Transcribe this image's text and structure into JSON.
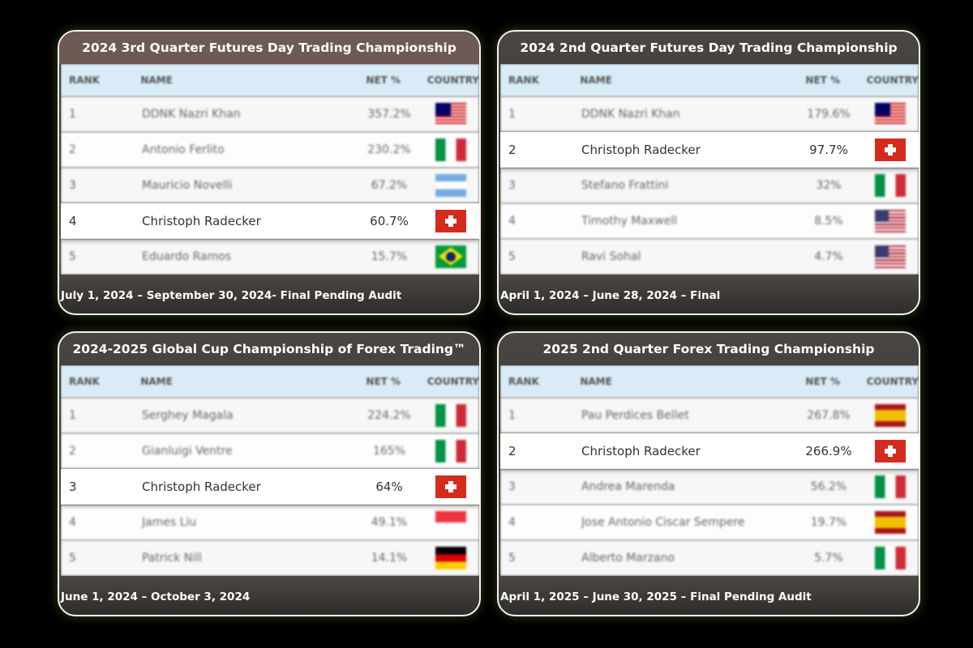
{
  "panels": [
    {
      "title": "2024 3rd Quarter Futures Day Trading Championship",
      "headers": [
        "RANK",
        "NAME",
        "NET %",
        "COUNTRY"
      ],
      "rows": [
        [
          "1",
          "DDNK Nazri Khan",
          "357.2%"
        ],
        [
          "2",
          "Antonio Ferlito",
          "230.2%"
        ],
        [
          "3",
          "Mauricio Novelli",
          "67.2%"
        ],
        [
          "4",
          "Christoph Radecker",
          "60.7%"
        ],
        [
          "5",
          "Eduardo Ramos",
          "15.7%"
        ]
      ],
      "footer": "July 1, 2024 – September 30, 2024- Final Pending Audit"
    },
    {
      "title": "2024 2nd Quarter Futures Day Trading Championship",
      "headers": [
        "RANK",
        "NAME",
        "NET %",
        "COUNTRY"
      ],
      "rows": [
        [
          "1",
          "DDNK Nazri Khan",
          "179.6%"
        ],
        [
          "2",
          "Christoph Radecker",
          "97.7%"
        ],
        [
          "3",
          "Stefano Frattini",
          "32%"
        ],
        [
          "4",
          "Timothy Maxwell",
          "8.5%"
        ],
        [
          "5",
          "Ravi Sohal",
          "4.7%"
        ]
      ],
      "footer": "April 1, 2024 – June 28, 2024 – Final"
    },
    {
      "title": "2024-2025 Global Cup Championship of Forex Trading™",
      "headers": [
        "RANK",
        "NAME",
        "NET %",
        "COUNTRY"
      ],
      "rows": [
        [
          "1",
          "Serghey Magala",
          "224.2%"
        ],
        [
          "2",
          "Gianluigi Ventre",
          "165%"
        ],
        [
          "3",
          "Christoph Radecker",
          "64%"
        ],
        [
          "4",
          "James Liu",
          "49.1%"
        ],
        [
          "5",
          "Patrick Nill",
          "14.1%"
        ]
      ],
      "footer": "June 1, 2024 – October 3, 2024"
    },
    {
      "title": "2025 2nd Quarter Forex Trading Championship",
      "headers": [
        "RANK",
        "NAME",
        "NET %",
        "COUNTRY"
      ],
      "rows": [
        [
          "1",
          "Pau Perdices Bellet",
          "267.8%"
        ],
        [
          "2",
          "Christoph Radecker",
          "266.9%"
        ],
        [
          "3",
          "Andrea Marenda",
          "56.2%"
        ],
        [
          "4",
          "Jose Antonio Ciscar Sempere",
          "19.7%"
        ],
        [
          "5",
          "Alberto Marzano",
          "5.7%"
        ]
      ],
      "footer": "April 1, 2025 – June 30, 2025 – Final Pending Audit"
    }
  ]
}
